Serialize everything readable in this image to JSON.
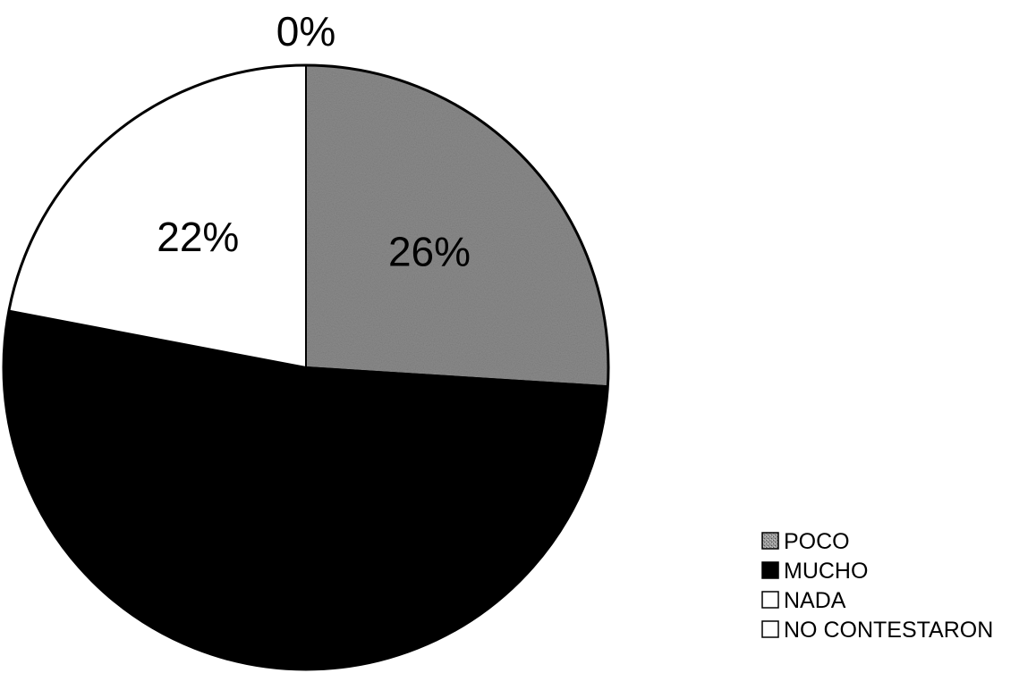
{
  "chart_data": {
    "type": "pie",
    "categories": [
      "POCO",
      "MUCHO",
      "NADA",
      "NO CONTESTARON"
    ],
    "values": [
      26,
      52,
      22,
      0
    ],
    "data_labels": [
      "26%",
      "",
      "22%",
      "0%"
    ],
    "colors": [
      "#8c8c8c",
      "#000000",
      "#ffffff",
      "#ffffff"
    ],
    "legend_position": "bottom-right"
  }
}
